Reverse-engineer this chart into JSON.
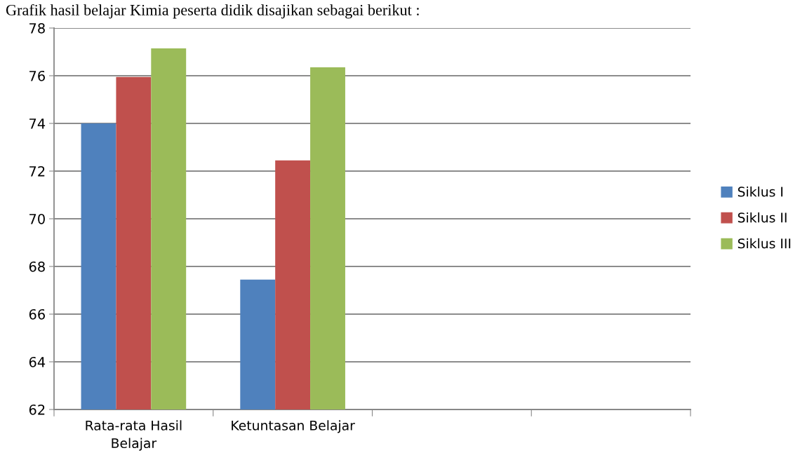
{
  "chart_data": {
    "type": "bar",
    "title": "Grafik hasil belajar Kimia peserta didik disajikan sebagai berikut :",
    "categories": [
      "Rata-rata Hasil\nBelajar",
      "Ketuntasan Belajar",
      null,
      null
    ],
    "series": [
      {
        "name": "Siklus I",
        "color": "#4f81bd",
        "values": [
          74.0,
          67.45,
          null,
          null
        ]
      },
      {
        "name": "Siklus II",
        "color": "#c0504d",
        "values": [
          75.95,
          72.45,
          null,
          null
        ]
      },
      {
        "name": "Siklus III",
        "color": "#9bbb59",
        "values": [
          77.15,
          76.35,
          null,
          null
        ]
      }
    ],
    "ylim": [
      62,
      78
    ],
    "yticks": [
      62,
      64,
      66,
      68,
      70,
      72,
      74,
      76,
      78
    ],
    "grid": "y",
    "legend": "right"
  }
}
